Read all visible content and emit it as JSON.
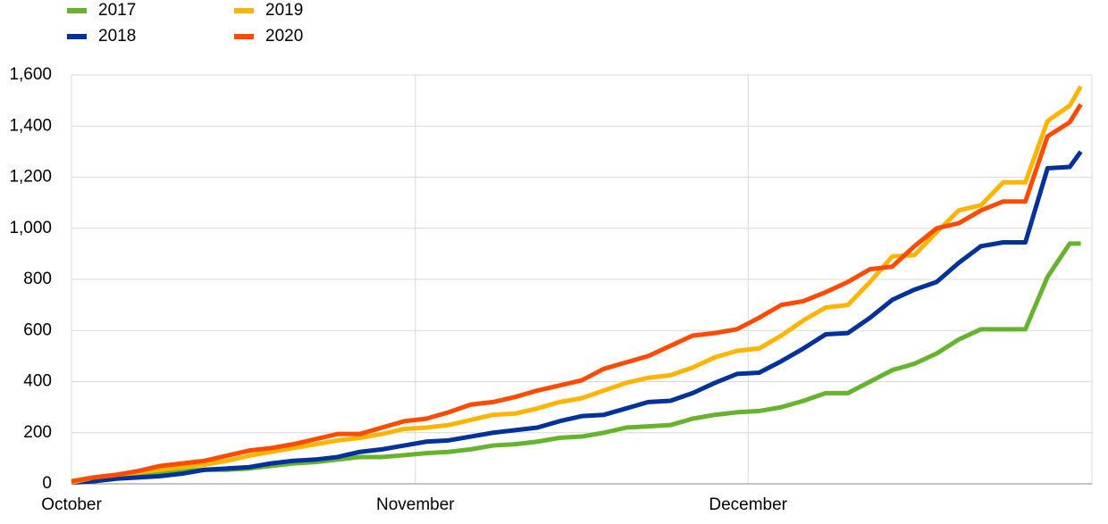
{
  "chart_data": {
    "type": "line",
    "x": [
      0,
      2,
      4,
      6,
      8,
      10,
      12,
      14,
      16,
      18,
      20,
      22,
      24,
      26,
      28,
      30,
      32,
      34,
      36,
      38,
      40,
      42,
      44,
      46,
      48,
      50,
      52,
      54,
      56,
      58,
      60,
      62,
      64,
      66,
      68,
      70,
      72,
      74,
      76,
      78,
      80,
      82,
      84,
      86,
      88,
      90,
      91
    ],
    "xlim": [
      0,
      92
    ],
    "xticks": [
      {
        "value": 0,
        "label": "October"
      },
      {
        "value": 31,
        "label": "November"
      },
      {
        "value": 61,
        "label": "December"
      }
    ],
    "ylim": [
      0,
      1600
    ],
    "yticks": [
      0,
      200,
      400,
      600,
      800,
      {
        "value": 1000,
        "label": "1,000"
      },
      {
        "value": 1200,
        "label": "1,200"
      },
      {
        "value": 1400,
        "label": "1,400"
      },
      {
        "value": 1600,
        "label": "1,600"
      }
    ],
    "grid": true,
    "series": [
      {
        "name": "2017",
        "color": "#66b32e",
        "values": [
          10,
          20,
          25,
          30,
          40,
          50,
          55,
          55,
          60,
          70,
          80,
          85,
          95,
          105,
          105,
          112,
          120,
          125,
          135,
          150,
          155,
          165,
          180,
          185,
          200,
          220,
          225,
          230,
          255,
          270,
          280,
          285,
          300,
          325,
          355,
          355,
          400,
          445,
          470,
          510,
          565,
          605,
          605,
          605,
          810,
          940,
          940
        ]
      },
      {
        "name": "2018",
        "color": "#003299",
        "values": [
          5,
          10,
          20,
          25,
          30,
          40,
          55,
          60,
          65,
          80,
          90,
          95,
          105,
          125,
          135,
          150,
          165,
          170,
          185,
          200,
          210,
          220,
          245,
          265,
          270,
          295,
          320,
          325,
          355,
          395,
          430,
          435,
          480,
          530,
          585,
          590,
          650,
          720,
          760,
          790,
          865,
          930,
          945,
          945,
          1235,
          1240,
          1300
        ]
      },
      {
        "name": "2019",
        "color": "#ffb400",
        "values": [
          5,
          25,
          35,
          45,
          55,
          65,
          75,
          90,
          110,
          125,
          140,
          155,
          170,
          180,
          195,
          215,
          220,
          230,
          250,
          270,
          275,
          295,
          320,
          335,
          365,
          395,
          415,
          425,
          455,
          495,
          520,
          530,
          580,
          640,
          690,
          700,
          790,
          890,
          895,
          985,
          1070,
          1090,
          1180,
          1180,
          1420,
          1480,
          1555
        ]
      },
      {
        "name": "2020",
        "color": "#ff4b00",
        "values": [
          10,
          25,
          35,
          50,
          70,
          80,
          90,
          110,
          130,
          140,
          155,
          175,
          195,
          195,
          220,
          245,
          255,
          280,
          310,
          320,
          340,
          365,
          385,
          405,
          450,
          475,
          500,
          540,
          580,
          590,
          605,
          650,
          700,
          715,
          750,
          790,
          840,
          850,
          930,
          1000,
          1020,
          1070,
          1105,
          1105,
          1360,
          1415,
          1485
        ]
      }
    ]
  }
}
